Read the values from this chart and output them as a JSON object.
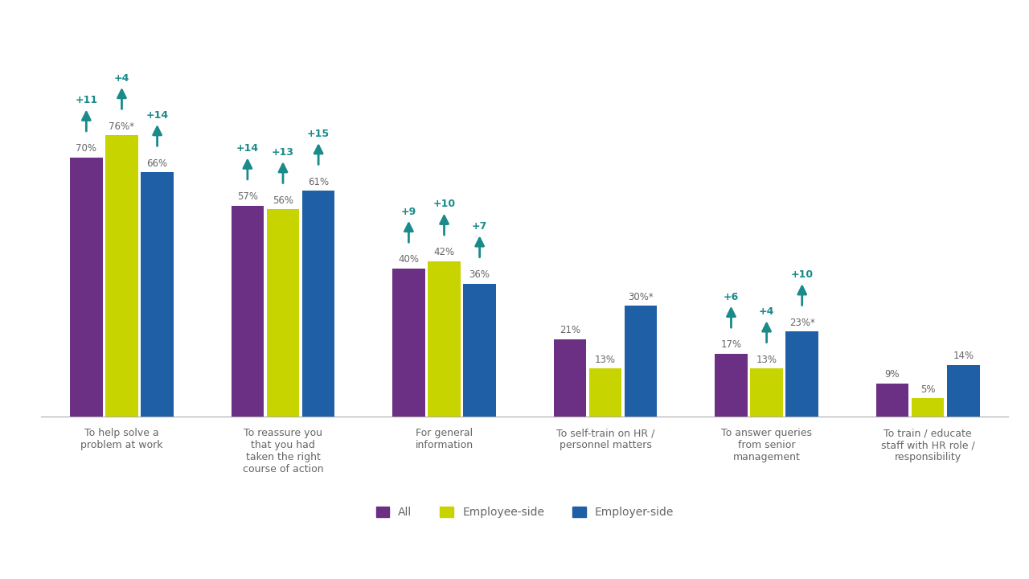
{
  "categories": [
    "To help solve a\nproblem at work",
    "To reassure you\nthat you had\ntaken the right\ncourse of action",
    "For general\ninformation",
    "To self-train on HR /\npersonnel matters",
    "To answer queries\nfrom senior\nmanagement",
    "To train / educate\nstaff with HR role /\nresponsibility"
  ],
  "series": {
    "All": [
      70,
      57,
      40,
      21,
      17,
      9
    ],
    "Employee-side": [
      76,
      56,
      42,
      13,
      13,
      5
    ],
    "Employer-side": [
      66,
      61,
      36,
      30,
      23,
      14
    ]
  },
  "labels": {
    "All": [
      "70%",
      "57%",
      "40%",
      "21%",
      "17%",
      "9%"
    ],
    "Employee-side": [
      "76%*",
      "56%",
      "42%",
      "13%",
      "13%",
      "5%"
    ],
    "Employer-side": [
      "66%",
      "61%",
      "36%",
      "30%*",
      "23%*",
      "14%"
    ]
  },
  "arrows": {
    "All": [
      "+11",
      "+14",
      "+9",
      null,
      "+6",
      null
    ],
    "Employee-side": [
      "+4",
      "+13",
      "+10",
      null,
      "+4",
      null
    ],
    "Employer-side": [
      "+14",
      "+15",
      "+7",
      null,
      "+10",
      null
    ]
  },
  "colors": {
    "All": "#6b3083",
    "Employee-side": "#c8d400",
    "Employer-side": "#1f5fa6",
    "arrow": "#1a8a8a"
  },
  "label_color": "#666666",
  "background_color": "#ffffff",
  "legend_labels": [
    "All",
    "Employee-side",
    "Employer-side"
  ],
  "bar_width": 0.22,
  "ylim": [
    0,
    100
  ],
  "arrow_color": "#1a8a8a"
}
